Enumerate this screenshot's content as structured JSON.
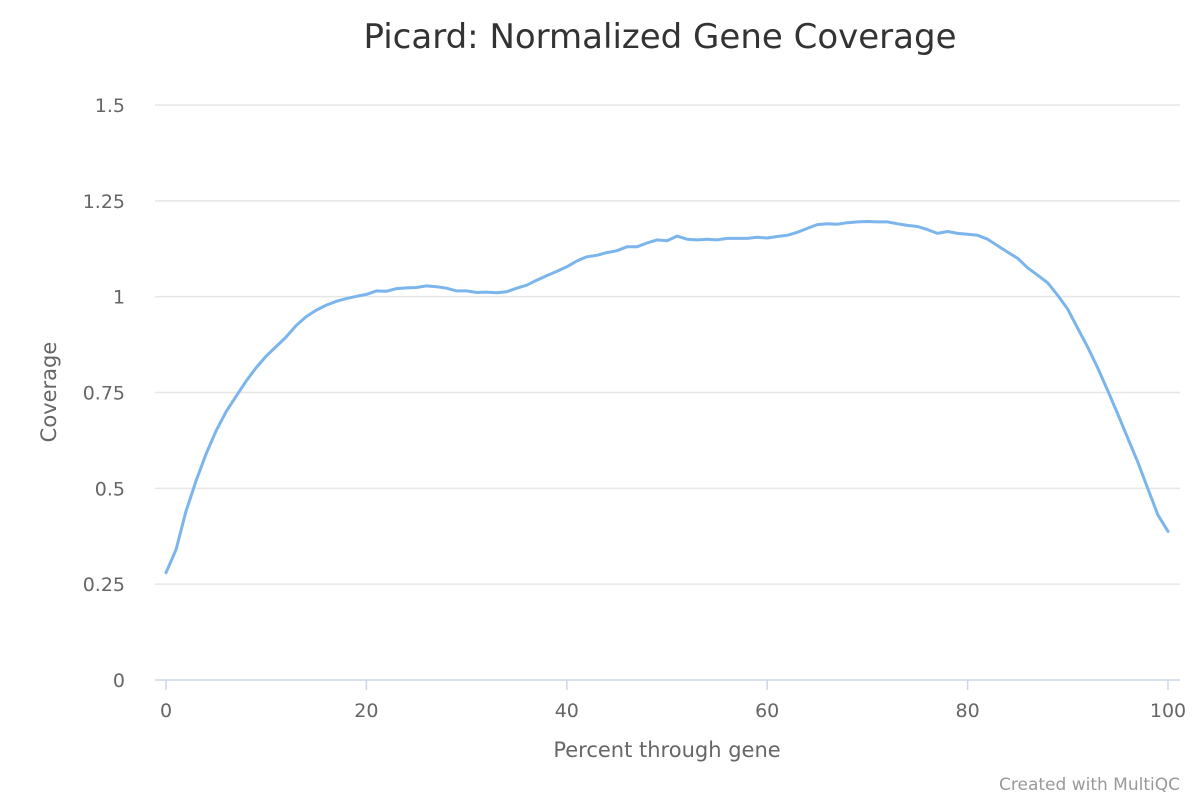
{
  "chart_data": {
    "type": "line",
    "title": "Picard: Normalized Gene Coverage",
    "xlabel": "Percent through gene",
    "ylabel": "Coverage",
    "xlim": [
      0,
      100
    ],
    "ylim": [
      0,
      1.5
    ],
    "x_ticks": [
      0,
      20,
      40,
      60,
      80,
      100
    ],
    "x_tick_labels": [
      "0",
      "20",
      "40",
      "60",
      "80",
      "100"
    ],
    "y_ticks": [
      0,
      0.25,
      0.5,
      0.75,
      1,
      1.25,
      1.5
    ],
    "y_tick_labels": [
      "0",
      "0.25",
      "0.5",
      "0.75",
      "1",
      "1.25",
      "1.5"
    ],
    "grid": true,
    "legend": "none",
    "credit": "Created with MultiQC",
    "colors": {
      "series": "#7cb5ec",
      "grid": "#e6e6e6",
      "axis": "#ccd6eb",
      "title": "#333333",
      "labels": "#666666",
      "credit": "#999999"
    },
    "series": [
      {
        "x": [
          0,
          1,
          2,
          3,
          4,
          5,
          6,
          7,
          8,
          9,
          10,
          11,
          12,
          13,
          14,
          15,
          16,
          17,
          18,
          19,
          20,
          21,
          22,
          23,
          24,
          25,
          26,
          27,
          28,
          29,
          30,
          31,
          32,
          33,
          34,
          35,
          36,
          37,
          38,
          39,
          40,
          41,
          42,
          43,
          44,
          45,
          46,
          47,
          48,
          49,
          50,
          51,
          52,
          53,
          54,
          55,
          56,
          57,
          58,
          59,
          60,
          61,
          62,
          63,
          64,
          65,
          66,
          67,
          68,
          69,
          70,
          71,
          72,
          73,
          74,
          75,
          76,
          77,
          78,
          79,
          80,
          81,
          82,
          83,
          84,
          85,
          86,
          87,
          88,
          89,
          90,
          91,
          92,
          93,
          94,
          95,
          96,
          97,
          98,
          99,
          100
        ],
        "values": [
          0.28,
          0.34,
          0.44,
          0.52,
          0.59,
          0.65,
          0.7,
          0.74,
          0.78,
          0.815,
          0.845,
          0.87,
          0.895,
          0.925,
          0.948,
          0.965,
          0.978,
          0.988,
          0.995,
          1.001,
          1.006,
          1.015,
          1.014,
          1.021,
          1.023,
          1.024,
          1.028,
          1.026,
          1.022,
          1.015,
          1.015,
          1.011,
          1.012,
          1.01,
          1.013,
          1.022,
          1.03,
          1.043,
          1.055,
          1.066,
          1.078,
          1.093,
          1.104,
          1.108,
          1.115,
          1.12,
          1.13,
          1.13,
          1.14,
          1.148,
          1.146,
          1.158,
          1.15,
          1.148,
          1.15,
          1.148,
          1.152,
          1.152,
          1.152,
          1.155,
          1.153,
          1.157,
          1.16,
          1.168,
          1.178,
          1.188,
          1.19,
          1.189,
          1.193,
          1.195,
          1.196,
          1.195,
          1.195,
          1.19,
          1.186,
          1.183,
          1.175,
          1.165,
          1.17,
          1.165,
          1.163,
          1.16,
          1.15,
          1.133,
          1.116,
          1.1,
          1.075,
          1.056,
          1.036,
          1.003,
          0.967,
          0.917,
          0.868,
          0.813,
          0.754,
          0.693,
          0.63,
          0.568,
          0.498,
          0.43,
          0.388
        ]
      }
    ]
  }
}
